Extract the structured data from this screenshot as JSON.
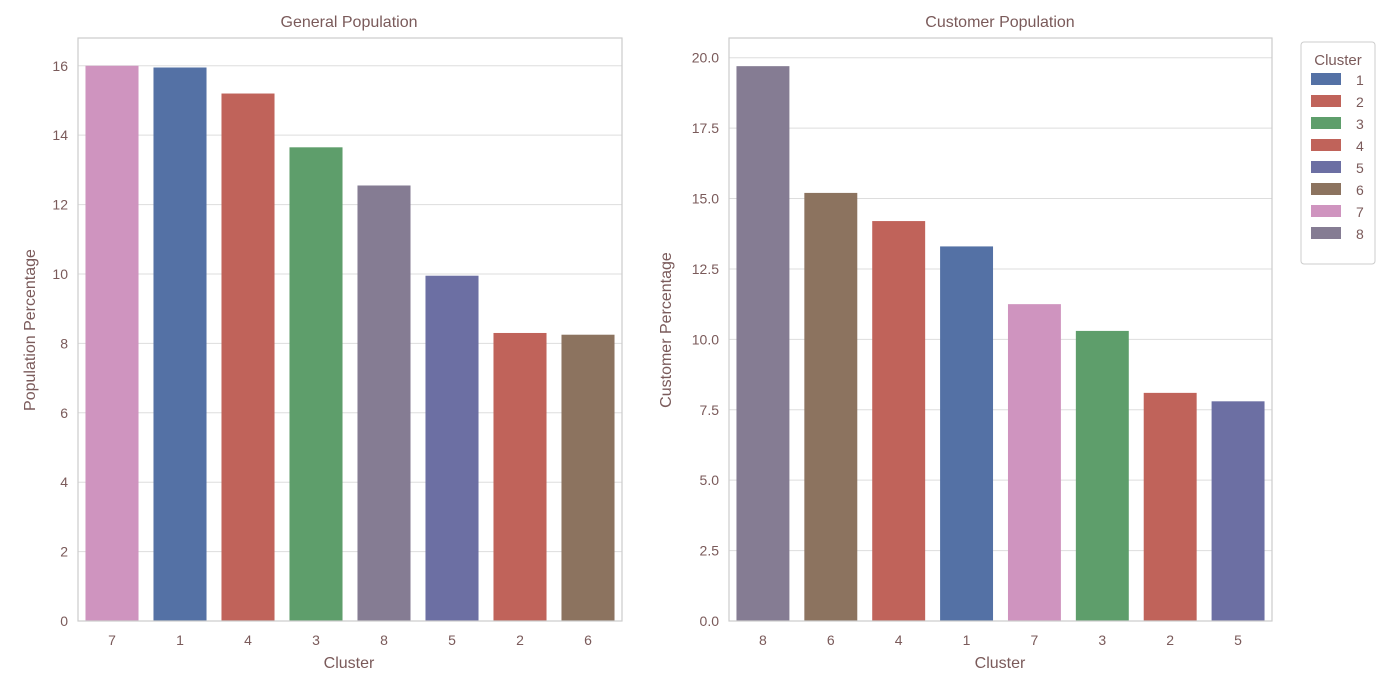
{
  "colors": {
    "1": "#5471a5",
    "2": "#c0635a",
    "3": "#5e9e6b",
    "4": "#c0635a",
    "5": "#6c6fa3",
    "6": "#8c735f",
    "7": "#cf94bf",
    "8": "#857c93"
  },
  "legend": {
    "title": "Cluster",
    "items": [
      "1",
      "2",
      "3",
      "4",
      "5",
      "6",
      "7",
      "8"
    ]
  },
  "chart_data": [
    {
      "type": "bar",
      "title": "General Population",
      "xlabel": "Cluster",
      "ylabel": "Population Percentage",
      "categories": [
        "7",
        "1",
        "4",
        "3",
        "8",
        "5",
        "2",
        "6"
      ],
      "values": [
        16.0,
        15.95,
        15.2,
        13.65,
        12.55,
        9.95,
        8.3,
        8.25
      ],
      "ylim": [
        0,
        16.8
      ],
      "yticks": [
        0,
        2,
        4,
        6,
        8,
        10,
        12,
        14,
        16
      ],
      "ytick_labels": [
        "0",
        "2",
        "4",
        "6",
        "8",
        "10",
        "12",
        "14",
        "16"
      ],
      "grid": true
    },
    {
      "type": "bar",
      "title": "Customer Population",
      "xlabel": "Cluster",
      "ylabel": "Customer Percentage",
      "categories": [
        "8",
        "6",
        "4",
        "1",
        "7",
        "3",
        "2",
        "5"
      ],
      "values": [
        19.7,
        15.2,
        14.2,
        13.3,
        11.25,
        10.3,
        8.1,
        7.8
      ],
      "ylim": [
        0,
        20.7
      ],
      "yticks": [
        0,
        2.5,
        5,
        7.5,
        10,
        12.5,
        15,
        17.5,
        20
      ],
      "ytick_labels": [
        "0.0",
        "2.5",
        "5.0",
        "7.5",
        "10.0",
        "12.5",
        "15.0",
        "17.5",
        "20.0"
      ],
      "grid": true,
      "legend_position": "upper-right-outside"
    }
  ]
}
